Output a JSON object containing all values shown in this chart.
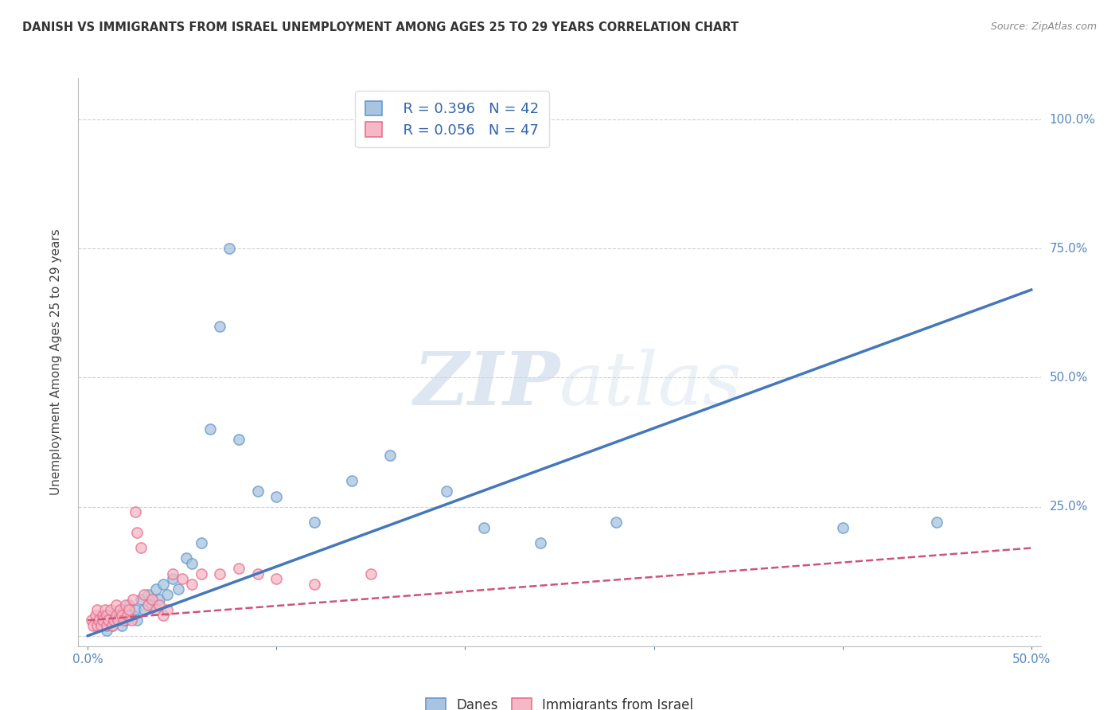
{
  "title": "DANISH VS IMMIGRANTS FROM ISRAEL UNEMPLOYMENT AMONG AGES 25 TO 29 YEARS CORRELATION CHART",
  "source": "Source: ZipAtlas.com",
  "ylabel": "Unemployment Among Ages 25 to 29 years",
  "xlim": [
    -0.005,
    0.505
  ],
  "ylim": [
    -0.02,
    1.08
  ],
  "xticks": [
    0.0,
    0.1,
    0.2,
    0.3,
    0.4,
    0.5
  ],
  "yticks": [
    0.0,
    0.25,
    0.5,
    0.75,
    1.0
  ],
  "xticklabels_left": [
    "0.0%"
  ],
  "xticklabels_right": [
    "50.0%"
  ],
  "yticklabels_right": [
    "",
    "25.0%",
    "50.0%",
    "75.0%",
    "100.0%"
  ],
  "legend_blue_R": "R = 0.396",
  "legend_blue_N": "N = 42",
  "legend_pink_R": "R = 0.056",
  "legend_pink_N": "N = 47",
  "legend_blue_label": "Danes",
  "legend_pink_label": "Immigrants from Israel",
  "blue_scatter_x": [
    0.005,
    0.008,
    0.01,
    0.012,
    0.013,
    0.015,
    0.016,
    0.018,
    0.019,
    0.02,
    0.022,
    0.024,
    0.025,
    0.026,
    0.028,
    0.03,
    0.032,
    0.034,
    0.036,
    0.038,
    0.04,
    0.042,
    0.045,
    0.048,
    0.052,
    0.055,
    0.06,
    0.065,
    0.07,
    0.075,
    0.08,
    0.09,
    0.1,
    0.12,
    0.14,
    0.16,
    0.19,
    0.21,
    0.24,
    0.28,
    0.4,
    0.45
  ],
  "blue_scatter_y": [
    0.02,
    0.03,
    0.01,
    0.04,
    0.02,
    0.03,
    0.04,
    0.02,
    0.05,
    0.03,
    0.06,
    0.04,
    0.05,
    0.03,
    0.07,
    0.05,
    0.08,
    0.06,
    0.09,
    0.07,
    0.1,
    0.08,
    0.11,
    0.09,
    0.15,
    0.14,
    0.18,
    0.4,
    0.6,
    0.75,
    0.38,
    0.28,
    0.27,
    0.22,
    0.3,
    0.35,
    0.28,
    0.21,
    0.18,
    0.22,
    0.21,
    0.22
  ],
  "pink_scatter_x": [
    0.002,
    0.003,
    0.004,
    0.005,
    0.005,
    0.006,
    0.007,
    0.008,
    0.008,
    0.009,
    0.01,
    0.01,
    0.011,
    0.012,
    0.013,
    0.014,
    0.015,
    0.015,
    0.016,
    0.017,
    0.018,
    0.019,
    0.02,
    0.021,
    0.022,
    0.023,
    0.024,
    0.025,
    0.026,
    0.028,
    0.03,
    0.032,
    0.034,
    0.036,
    0.038,
    0.04,
    0.042,
    0.045,
    0.05,
    0.055,
    0.06,
    0.07,
    0.08,
    0.09,
    0.1,
    0.12,
    0.15
  ],
  "pink_scatter_y": [
    0.03,
    0.02,
    0.04,
    0.02,
    0.05,
    0.03,
    0.02,
    0.04,
    0.03,
    0.05,
    0.02,
    0.04,
    0.03,
    0.05,
    0.02,
    0.03,
    0.04,
    0.06,
    0.03,
    0.05,
    0.04,
    0.03,
    0.06,
    0.04,
    0.05,
    0.03,
    0.07,
    0.24,
    0.2,
    0.17,
    0.08,
    0.06,
    0.07,
    0.05,
    0.06,
    0.04,
    0.05,
    0.12,
    0.11,
    0.1,
    0.12,
    0.12,
    0.13,
    0.12,
    0.11,
    0.1,
    0.12
  ],
  "blue_line_x": [
    0.0,
    0.5
  ],
  "blue_line_y": [
    0.0,
    0.67
  ],
  "pink_line_x": [
    0.0,
    0.5
  ],
  "pink_line_y": [
    0.03,
    0.17
  ],
  "blue_fill_color": "#A8C4E0",
  "blue_edge_color": "#6699CC",
  "pink_fill_color": "#F5B8C4",
  "pink_edge_color": "#E87090",
  "blue_line_color": "#4477BB",
  "pink_line_color": "#CC5577",
  "watermark_color": "#C8D8E8",
  "background_color": "#FFFFFF",
  "grid_color": "#CCCCCC"
}
